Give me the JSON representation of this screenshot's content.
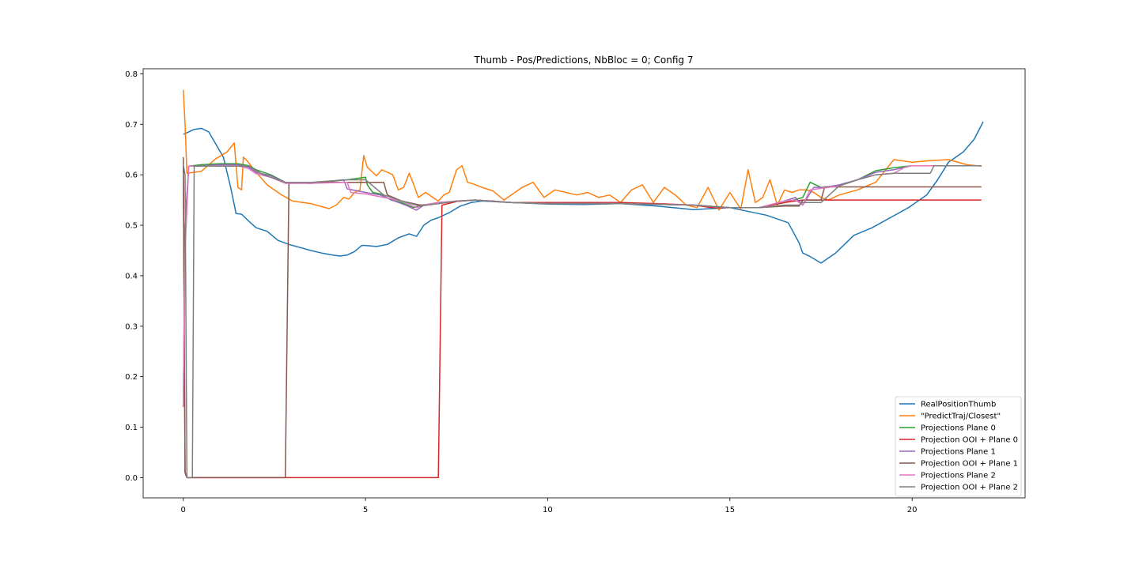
{
  "chart_data": {
    "type": "line",
    "title": "Thumb - Pos/Predictions, NbBloc = 0; Config 7",
    "xlabel": "",
    "ylabel": "",
    "xlim": [
      -1.1,
      23.1
    ],
    "ylim": [
      -0.04,
      0.81
    ],
    "xticks": [
      0,
      5,
      10,
      15,
      20
    ],
    "yticks": [
      0.0,
      0.1,
      0.2,
      0.3,
      0.4,
      0.5,
      0.6,
      0.7,
      0.8
    ],
    "xtick_labels": [
      "0",
      "5",
      "10",
      "15",
      "20"
    ],
    "ytick_labels": [
      "0.0",
      "0.1",
      "0.2",
      "0.3",
      "0.4",
      "0.5",
      "0.6",
      "0.7",
      "0.8"
    ],
    "grid": false,
    "legend_position": "bottom-right",
    "series": [
      {
        "name": "RealPositionThumb",
        "color": "#1f77b4",
        "x": [
          0,
          0.15,
          0.3,
          0.5,
          0.7,
          0.9,
          1.1,
          1.3,
          1.45,
          1.6,
          1.8,
          2.0,
          2.3,
          2.6,
          2.9,
          3.2,
          3.5,
          3.8,
          4.1,
          4.3,
          4.5,
          4.7,
          4.9,
          5.0,
          5.3,
          5.6,
          5.9,
          6.2,
          6.4,
          6.6,
          6.8,
          7.0,
          7.3,
          7.6,
          7.9,
          8.2,
          9.0,
          10.0,
          11.0,
          12.0,
          13.0,
          14.0,
          15.0,
          16.0,
          16.6,
          16.9,
          17.0,
          17.2,
          17.5,
          17.9,
          18.4,
          18.9,
          19.4,
          19.9,
          20.4,
          20.7,
          21.0,
          21.4,
          21.7,
          21.95
        ],
        "y": [
          0.68,
          0.685,
          0.69,
          0.692,
          0.685,
          0.66,
          0.635,
          0.575,
          0.523,
          0.522,
          0.508,
          0.495,
          0.488,
          0.47,
          0.462,
          0.456,
          0.45,
          0.445,
          0.441,
          0.439,
          0.441,
          0.448,
          0.46,
          0.46,
          0.458,
          0.462,
          0.475,
          0.483,
          0.478,
          0.5,
          0.51,
          0.515,
          0.525,
          0.538,
          0.545,
          0.548,
          0.545,
          0.542,
          0.541,
          0.543,
          0.538,
          0.531,
          0.535,
          0.52,
          0.505,
          0.465,
          0.445,
          0.438,
          0.425,
          0.445,
          0.48,
          0.495,
          0.515,
          0.535,
          0.56,
          0.59,
          0.625,
          0.645,
          0.67,
          0.705
        ]
      },
      {
        "name": "\"PredictTraj/Closest\"",
        "color": "#ff7f0e",
        "x": [
          0,
          0.05,
          0.1,
          0.5,
          0.9,
          1.2,
          1.4,
          1.5,
          1.6,
          1.65,
          1.75,
          2.0,
          2.3,
          2.7,
          3.0,
          3.5,
          4.0,
          4.2,
          4.4,
          4.55,
          4.7,
          4.85,
          4.95,
          5.05,
          5.15,
          5.3,
          5.45,
          5.6,
          5.75,
          5.9,
          6.05,
          6.2,
          6.3,
          6.45,
          6.65,
          6.85,
          7.0,
          7.15,
          7.3,
          7.5,
          7.65,
          7.8,
          7.95,
          8.2,
          8.5,
          8.8,
          9.0,
          9.3,
          9.6,
          9.9,
          10.2,
          10.5,
          10.8,
          11.1,
          11.4,
          11.7,
          12.0,
          12.3,
          12.6,
          12.9,
          13.2,
          13.5,
          13.8,
          14.1,
          14.4,
          14.7,
          15.0,
          15.3,
          15.5,
          15.7,
          15.9,
          16.1,
          16.3,
          16.5,
          16.7,
          16.9,
          17.1,
          17.3,
          17.5,
          17.7,
          18.0,
          18.5,
          19.0,
          19.5,
          20.0,
          20.5,
          21.0,
          21.5,
          21.9
        ],
        "y": [
          0.768,
          0.7,
          0.603,
          0.607,
          0.632,
          0.645,
          0.663,
          0.575,
          0.57,
          0.635,
          0.628,
          0.605,
          0.58,
          0.56,
          0.548,
          0.543,
          0.533,
          0.54,
          0.555,
          0.552,
          0.565,
          0.57,
          0.638,
          0.615,
          0.608,
          0.598,
          0.61,
          0.605,
          0.6,
          0.57,
          0.575,
          0.603,
          0.585,
          0.555,
          0.565,
          0.555,
          0.548,
          0.56,
          0.565,
          0.61,
          0.618,
          0.585,
          0.582,
          0.575,
          0.568,
          0.55,
          0.56,
          0.575,
          0.585,
          0.555,
          0.57,
          0.565,
          0.56,
          0.565,
          0.555,
          0.56,
          0.545,
          0.57,
          0.58,
          0.545,
          0.575,
          0.56,
          0.54,
          0.535,
          0.575,
          0.53,
          0.565,
          0.532,
          0.61,
          0.545,
          0.555,
          0.59,
          0.54,
          0.57,
          0.565,
          0.57,
          0.57,
          0.565,
          0.555,
          0.55,
          0.56,
          0.57,
          0.585,
          0.63,
          0.625,
          0.628,
          0.63,
          0.62,
          0.617
        ]
      },
      {
        "name": "Projections Plane 0",
        "color": "#2ca02c",
        "x": [
          0,
          0.05,
          0.15,
          0.5,
          1.0,
          1.5,
          1.8,
          2.0,
          2.4,
          2.8,
          3.5,
          4.5,
          5.0,
          5.05,
          5.2,
          5.4,
          5.7,
          6.0,
          6.3,
          6.6,
          7.0,
          7.6,
          8.0,
          9.0,
          10.0,
          12.0,
          14.0,
          15.0,
          15.8,
          16.5,
          17.0,
          17.2,
          17.5,
          18.0,
          18.5,
          19.0,
          19.5,
          20.0,
          21.0,
          21.9
        ],
        "y": [
          0.14,
          0.5,
          0.617,
          0.62,
          0.622,
          0.622,
          0.618,
          0.61,
          0.6,
          0.585,
          0.583,
          0.59,
          0.595,
          0.58,
          0.565,
          0.562,
          0.55,
          0.545,
          0.535,
          0.54,
          0.545,
          0.548,
          0.55,
          0.545,
          0.543,
          0.543,
          0.54,
          0.535,
          0.535,
          0.545,
          0.555,
          0.585,
          0.575,
          0.578,
          0.59,
          0.608,
          0.614,
          0.618,
          0.618,
          0.618
        ]
      },
      {
        "name": "Projection OOI + Plane 0",
        "color": "#d62728",
        "x": [
          0,
          0.05,
          0.1,
          7.0,
          7.1,
          7.5,
          8.0,
          8.5,
          9.0,
          10.0,
          12.0,
          13.0,
          14.0,
          14.5,
          15.0,
          15.8,
          16.5,
          17.0,
          17.2,
          18.0,
          19.0,
          20.0,
          21.0,
          21.9
        ],
        "y": [
          0.63,
          0.01,
          0.0,
          0.0,
          0.54,
          0.547,
          0.55,
          0.548,
          0.545,
          0.545,
          0.545,
          0.543,
          0.54,
          0.535,
          0.535,
          0.535,
          0.545,
          0.55,
          0.55,
          0.55,
          0.55,
          0.55,
          0.55,
          0.55
        ]
      },
      {
        "name": "Projections Plane 1",
        "color": "#9467bd",
        "x": [
          0,
          0.05,
          0.15,
          0.5,
          1.0,
          1.5,
          1.8,
          2.0,
          2.4,
          2.8,
          3.5,
          4.4,
          4.5,
          5.0,
          5.4,
          5.8,
          6.1,
          6.4,
          6.6,
          7.0,
          7.6,
          8.0,
          9.0,
          10.0,
          12.0,
          14.0,
          15.0,
          15.8,
          16.5,
          16.8,
          17.0,
          17.3,
          17.6,
          18.0,
          18.5,
          19.0,
          19.5,
          20.0,
          21.0,
          21.9
        ],
        "y": [
          0.14,
          0.5,
          0.617,
          0.618,
          0.62,
          0.62,
          0.615,
          0.605,
          0.598,
          0.585,
          0.583,
          0.59,
          0.572,
          0.565,
          0.56,
          0.548,
          0.54,
          0.53,
          0.54,
          0.545,
          0.548,
          0.55,
          0.545,
          0.543,
          0.543,
          0.54,
          0.535,
          0.535,
          0.548,
          0.555,
          0.54,
          0.575,
          0.575,
          0.58,
          0.59,
          0.605,
          0.61,
          0.618,
          0.618,
          0.618
        ]
      },
      {
        "name": "Projection OOI + Plane 1",
        "color": "#8c564b",
        "x": [
          0,
          0.05,
          0.1,
          2.8,
          2.9,
          3.5,
          4.5,
          5.5,
          5.6,
          6.0,
          6.5,
          7.0,
          7.5,
          8.0,
          9.0,
          10.0,
          12.0,
          14.0,
          15.0,
          15.8,
          16.5,
          16.9,
          17.0,
          17.5,
          17.6,
          18.0,
          19.0,
          20.0,
          21.0,
          21.9
        ],
        "y": [
          0.635,
          0.01,
          0.0,
          0.0,
          0.583,
          0.585,
          0.585,
          0.585,
          0.56,
          0.548,
          0.54,
          0.543,
          0.548,
          0.55,
          0.545,
          0.543,
          0.543,
          0.54,
          0.535,
          0.535,
          0.538,
          0.538,
          0.55,
          0.55,
          0.576,
          0.576,
          0.576,
          0.576,
          0.576,
          0.576
        ]
      },
      {
        "name": "Projections Plane 2",
        "color": "#e377c2",
        "x": [
          0,
          0.05,
          0.15,
          0.5,
          1.0,
          1.5,
          1.8,
          2.0,
          2.4,
          2.8,
          3.5,
          4.5,
          4.6,
          5.0,
          5.5,
          6.0,
          6.4,
          6.6,
          7.0,
          7.6,
          8.0,
          9.0,
          10.0,
          12.0,
          14.0,
          15.0,
          15.8,
          16.5,
          16.8,
          17.0,
          17.2,
          17.5,
          18.0,
          18.5,
          19.0,
          19.5,
          19.8,
          20.0,
          21.0,
          21.9
        ],
        "y": [
          0.14,
          0.45,
          0.617,
          0.617,
          0.618,
          0.618,
          0.612,
          0.602,
          0.595,
          0.583,
          0.583,
          0.585,
          0.565,
          0.562,
          0.555,
          0.548,
          0.535,
          0.54,
          0.545,
          0.548,
          0.55,
          0.545,
          0.543,
          0.543,
          0.54,
          0.535,
          0.535,
          0.548,
          0.55,
          0.54,
          0.57,
          0.573,
          0.578,
          0.59,
          0.6,
          0.603,
          0.615,
          0.618,
          0.618,
          0.618
        ]
      },
      {
        "name": "Projection OOI + Plane 2",
        "color": "#7f7f7f",
        "x": [
          0,
          0.05,
          0.1,
          0.25,
          0.3,
          1.0,
          1.8,
          2.2,
          2.8,
          3.5,
          4.5,
          5.0,
          5.5,
          6.0,
          6.5,
          7.0,
          7.5,
          8.0,
          9.0,
          10.0,
          12.0,
          14.0,
          15.0,
          15.8,
          16.5,
          16.9,
          17.0,
          17.5,
          18.0,
          18.5,
          19.0,
          19.5,
          20.5,
          20.6,
          21.0,
          21.9
        ],
        "y": [
          0.62,
          0.6,
          0.0,
          0.0,
          0.617,
          0.617,
          0.617,
          0.6,
          0.585,
          0.585,
          0.59,
          0.59,
          0.56,
          0.548,
          0.538,
          0.543,
          0.548,
          0.55,
          0.545,
          0.543,
          0.543,
          0.54,
          0.535,
          0.535,
          0.54,
          0.54,
          0.545,
          0.545,
          0.578,
          0.59,
          0.6,
          0.603,
          0.603,
          0.618,
          0.618,
          0.618
        ]
      }
    ]
  }
}
